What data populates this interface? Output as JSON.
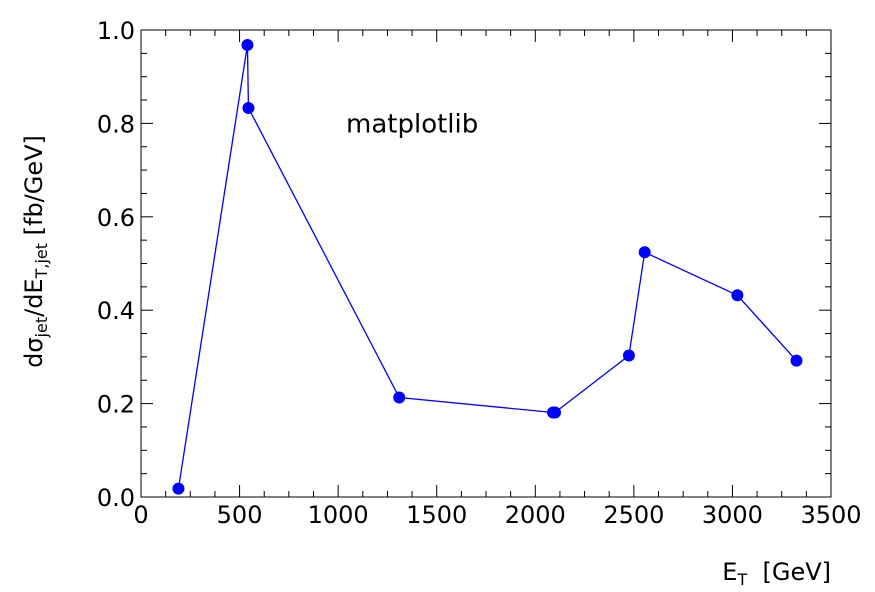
{
  "chart_data": {
    "type": "line",
    "x": [
      190,
      540,
      545,
      1310,
      2090,
      2100,
      2475,
      2555,
      3025,
      3325
    ],
    "series": [
      {
        "values": [
          0.018,
          0.968,
          0.833,
          0.213,
          0.181,
          0.181,
          0.303,
          0.524,
          0.432,
          0.292
        ],
        "color": "#0000ff"
      }
    ],
    "xlim": [
      0,
      3500
    ],
    "ylim": [
      0,
      1.0
    ],
    "xticks": [
      0,
      500,
      1000,
      1500,
      2000,
      2500,
      3000,
      3500
    ],
    "xtick_labels": [
      "0",
      "500",
      "1000",
      "1500",
      "2000",
      "2500",
      "3000",
      "3500"
    ],
    "yticks": [
      0.0,
      0.2,
      0.4,
      0.6,
      0.8,
      1.0
    ],
    "ytick_labels": [
      "0.0",
      "0.2",
      "0.4",
      "0.6",
      "0.8",
      "1.0"
    ],
    "xlabel": {
      "main": "E",
      "sub": "T",
      "rest": "  [GeV]"
    },
    "ylabel": {
      "p1": "dσ",
      "s1": "jet",
      "p2": "/dE",
      "s2": "T,jet",
      "p3": " [fb/GeV]"
    },
    "annotation": {
      "text": "matplotlib",
      "x": 1040,
      "y": 0.8
    },
    "grid": false,
    "line_color": "#0000ff",
    "marker": "circle"
  }
}
